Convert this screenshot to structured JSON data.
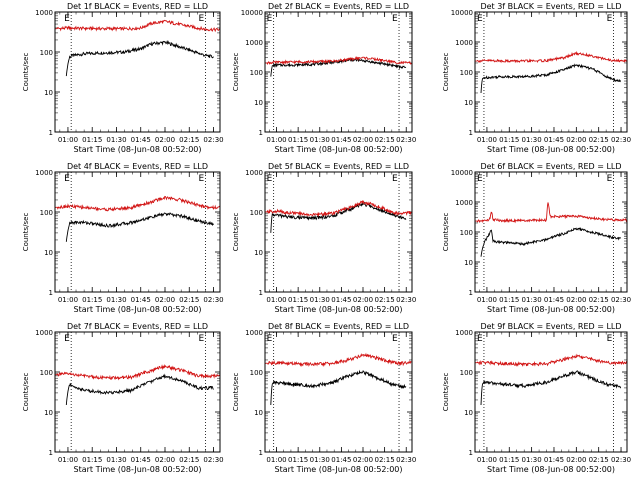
{
  "chart_data": [
    {
      "type": "line",
      "title": "Det 1f BLACK = Events, RED = LLD",
      "xlabel": "Start Time (08-Jun-08 00:52:00)",
      "ylabel": "Counts/sec",
      "yscale": "log",
      "ylim": [
        1,
        1000
      ],
      "yticks": [
        "1",
        "10",
        "100",
        "1000"
      ],
      "xticks": [
        "01:00",
        "01:15",
        "01:30",
        "01:45",
        "02:00",
        "02:15",
        "02:30"
      ],
      "xlim_minutes": [
        52,
        154
      ],
      "markers": [
        {
          "x": 62,
          "label": "E"
        },
        {
          "x": 145,
          "label": "E"
        }
      ],
      "series": [
        {
          "name": "BLACK = Events",
          "color": "#000000",
          "x": [
            59,
            61,
            62,
            70,
            80,
            95,
            105,
            112,
            120,
            130,
            140,
            145,
            150
          ],
          "y": [
            25,
            75,
            80,
            90,
            95,
            100,
            120,
            160,
            175,
            130,
            95,
            82,
            75
          ]
        },
        {
          "name": "RED = LLD",
          "color": "#d21414",
          "x": [
            52,
            60,
            70,
            80,
            95,
            105,
            112,
            120,
            130,
            140,
            145,
            154
          ],
          "y": [
            380,
            400,
            390,
            385,
            380,
            400,
            520,
            580,
            480,
            400,
            370,
            360
          ]
        }
      ]
    },
    {
      "type": "line",
      "title": "Det 2f BLACK = Events, RED = LLD",
      "xlabel": "Start Time (08-Jun-08 00:52:00)",
      "ylabel": "Counts/sec",
      "yscale": "log",
      "ylim": [
        1,
        10000
      ],
      "yticks": [
        "1",
        "10",
        "100",
        "1000",
        "10000"
      ],
      "xticks": [
        "01:00",
        "01:15",
        "01:30",
        "01:45",
        "02:00",
        "02:15",
        "02:30"
      ],
      "xlim_minutes": [
        52,
        154
      ],
      "markers": [
        {
          "x": 58,
          "label": "E"
        },
        {
          "x": 145,
          "label": "E"
        }
      ],
      "series": [
        {
          "name": "BLACK = Events",
          "color": "#000000",
          "x": [
            56,
            57,
            58,
            70,
            85,
            100,
            112,
            120,
            130,
            140,
            145,
            150
          ],
          "y": [
            70,
            160,
            170,
            170,
            180,
            210,
            250,
            240,
            200,
            170,
            150,
            140
          ]
        },
        {
          "name": "RED = LLD",
          "color": "#d21414",
          "x": [
            52,
            60,
            70,
            85,
            100,
            112,
            120,
            130,
            140,
            145,
            154
          ],
          "y": [
            200,
            210,
            215,
            220,
            230,
            270,
            300,
            260,
            220,
            205,
            200
          ]
        }
      ]
    },
    {
      "type": "line",
      "title": "Det 3f BLACK = Events, RED = LLD",
      "xlabel": "Start Time (08-Jun-08 00:52:00)",
      "ylabel": "Counts/sec",
      "yscale": "log",
      "ylim": [
        1,
        10000
      ],
      "yticks": [
        "1",
        "10",
        "100",
        "1000",
        "10000"
      ],
      "xticks": [
        "01:00",
        "01:15",
        "01:30",
        "01:45",
        "02:00",
        "02:15",
        "02:30"
      ],
      "xlim_minutes": [
        52,
        154
      ],
      "markers": [
        {
          "x": 58,
          "label": "E"
        },
        {
          "x": 145,
          "label": "E"
        }
      ],
      "series": [
        {
          "name": "BLACK = Events",
          "color": "#000000",
          "x": [
            56,
            57,
            58,
            70,
            85,
            100,
            112,
            120,
            130,
            140,
            145,
            150
          ],
          "y": [
            20,
            60,
            65,
            70,
            70,
            80,
            120,
            170,
            130,
            70,
            55,
            50
          ]
        },
        {
          "name": "RED = LLD",
          "color": "#d21414",
          "x": [
            52,
            60,
            70,
            85,
            100,
            112,
            120,
            130,
            140,
            145,
            154
          ],
          "y": [
            230,
            240,
            235,
            230,
            240,
            300,
            420,
            350,
            260,
            240,
            230
          ]
        }
      ]
    },
    {
      "type": "line",
      "title": "Det 4f BLACK = Events, RED = LLD",
      "xlabel": "Start Time (08-Jun-08 00:52:00)",
      "ylabel": "Counts/sec",
      "yscale": "log",
      "ylim": [
        1,
        1000
      ],
      "yticks": [
        "1",
        "10",
        "100",
        "1000"
      ],
      "xticks": [
        "01:00",
        "01:15",
        "01:30",
        "01:45",
        "02:00",
        "02:15",
        "02:30"
      ],
      "xlim_minutes": [
        52,
        154
      ],
      "markers": [
        {
          "x": 62,
          "label": "E"
        },
        {
          "x": 145,
          "label": "E"
        }
      ],
      "series": [
        {
          "name": "BLACK = Events",
          "color": "#000000",
          "x": [
            59,
            61,
            62,
            70,
            85,
            100,
            112,
            120,
            130,
            140,
            145,
            150
          ],
          "y": [
            18,
            50,
            55,
            55,
            45,
            55,
            75,
            90,
            80,
            60,
            55,
            50
          ]
        },
        {
          "name": "RED = LLD",
          "color": "#d21414",
          "x": [
            52,
            60,
            70,
            85,
            100,
            112,
            120,
            130,
            140,
            145,
            154
          ],
          "y": [
            130,
            140,
            130,
            115,
            130,
            180,
            230,
            200,
            150,
            135,
            130
          ]
        }
      ]
    },
    {
      "type": "line",
      "title": "Det 5f BLACK = Events, RED = LLD",
      "xlabel": "Start Time (08-Jun-08 00:52:00)",
      "ylabel": "Counts/sec",
      "yscale": "log",
      "ylim": [
        1,
        1000
      ],
      "yticks": [
        "1",
        "10",
        "100",
        "1000"
      ],
      "xticks": [
        "01:00",
        "01:15",
        "01:30",
        "01:45",
        "02:00",
        "02:15",
        "02:30"
      ],
      "xlim_minutes": [
        52,
        154
      ],
      "markers": [
        {
          "x": 58,
          "label": "E"
        },
        {
          "x": 145,
          "label": "E"
        }
      ],
      "series": [
        {
          "name": "BLACK = Events",
          "color": "#000000",
          "x": [
            56,
            57,
            58,
            70,
            85,
            100,
            112,
            120,
            130,
            140,
            145,
            150
          ],
          "y": [
            30,
            90,
            85,
            75,
            70,
            80,
            120,
            160,
            120,
            90,
            75,
            70
          ]
        },
        {
          "name": "RED = LLD",
          "color": "#d21414",
          "x": [
            52,
            60,
            70,
            85,
            100,
            112,
            120,
            130,
            140,
            145,
            154
          ],
          "y": [
            100,
            105,
            95,
            85,
            95,
            130,
            180,
            140,
            100,
            90,
            100
          ]
        }
      ]
    },
    {
      "type": "line",
      "title": "Det 6f BLACK = Events, RED = LLD",
      "xlabel": "Start Time (08-Jun-08 00:52:00)",
      "ylabel": "Counts/sec",
      "yscale": "log",
      "ylim": [
        1,
        10000
      ],
      "yticks": [
        "1",
        "10",
        "100",
        "1000",
        "10000"
      ],
      "xticks": [
        "01:00",
        "01:15",
        "01:30",
        "01:45",
        "02:00",
        "02:15",
        "02:30"
      ],
      "xlim_minutes": [
        52,
        154
      ],
      "markers": [
        {
          "x": 58,
          "label": "E"
        },
        {
          "x": 145,
          "label": "E"
        }
      ],
      "series": [
        {
          "name": "BLACK = Events",
          "color": "#000000",
          "x": [
            56,
            62,
            63,
            64,
            70,
            85,
            100,
            101,
            105,
            112,
            120,
            130,
            140,
            145,
            150
          ],
          "y": [
            15,
            90,
            120,
            50,
            45,
            40,
            55,
            60,
            70,
            90,
            130,
            100,
            75,
            65,
            60
          ]
        },
        {
          "name": "RED = LLD",
          "color": "#d21414",
          "x": [
            52,
            60,
            62,
            63,
            64,
            70,
            85,
            100,
            101,
            102,
            103,
            112,
            120,
            130,
            140,
            145,
            154
          ],
          "y": [
            230,
            240,
            280,
            500,
            260,
            240,
            240,
            250,
            1000,
            400,
            330,
            330,
            340,
            290,
            260,
            255,
            250
          ]
        }
      ]
    },
    {
      "type": "line",
      "title": "Det 7f BLACK = Events, RED = LLD",
      "xlabel": "Start Time (08-Jun-08 00:52:00)",
      "ylabel": "Counts/sec",
      "yscale": "log",
      "ylim": [
        1,
        1000
      ],
      "yticks": [
        "1",
        "10",
        "100",
        "1000"
      ],
      "xticks": [
        "01:00",
        "01:15",
        "01:30",
        "01:45",
        "02:00",
        "02:15",
        "02:30"
      ],
      "xlim_minutes": [
        52,
        154
      ],
      "markers": [
        {
          "x": 62,
          "label": "E"
        },
        {
          "x": 145,
          "label": "E"
        }
      ],
      "series": [
        {
          "name": "BLACK = Events",
          "color": "#000000",
          "x": [
            59,
            61,
            62,
            70,
            85,
            100,
            112,
            120,
            130,
            140,
            145,
            150
          ],
          "y": [
            15,
            50,
            45,
            35,
            30,
            35,
            60,
            80,
            60,
            40,
            40,
            40
          ]
        },
        {
          "name": "RED = LLD",
          "color": "#d21414",
          "x": [
            52,
            60,
            70,
            85,
            100,
            112,
            120,
            130,
            140,
            145,
            154
          ],
          "y": [
            85,
            90,
            80,
            70,
            75,
            110,
            140,
            110,
            80,
            80,
            80
          ]
        }
      ]
    },
    {
      "type": "line",
      "title": "Det 8f BLACK = Events, RED = LLD",
      "xlabel": "Start Time (08-Jun-08 00:52:00)",
      "ylabel": "Counts/sec",
      "yscale": "log",
      "ylim": [
        1,
        1000
      ],
      "yticks": [
        "1",
        "10",
        "100",
        "1000"
      ],
      "xticks": [
        "01:00",
        "01:15",
        "01:30",
        "01:45",
        "02:00",
        "02:15",
        "02:30"
      ],
      "xlim_minutes": [
        52,
        154
      ],
      "markers": [
        {
          "x": 58,
          "label": "E"
        },
        {
          "x": 145,
          "label": "E"
        }
      ],
      "series": [
        {
          "name": "BLACK = Events",
          "color": "#000000",
          "x": [
            56,
            57,
            58,
            70,
            85,
            100,
            112,
            120,
            130,
            140,
            145,
            150
          ],
          "y": [
            15,
            50,
            55,
            50,
            45,
            55,
            85,
            100,
            70,
            50,
            45,
            42
          ]
        },
        {
          "name": "RED = LLD",
          "color": "#d21414",
          "x": [
            52,
            60,
            70,
            85,
            100,
            112,
            120,
            130,
            140,
            145,
            154
          ],
          "y": [
            165,
            170,
            165,
            155,
            165,
            210,
            270,
            220,
            175,
            165,
            170
          ]
        }
      ]
    },
    {
      "type": "line",
      "title": "Det 9f BLACK = Events, RED = LLD",
      "xlabel": "Start Time (08-Jun-08 00:52:00)",
      "ylabel": "Counts/sec",
      "yscale": "log",
      "ylim": [
        1,
        1000
      ],
      "yticks": [
        "1",
        "10",
        "100",
        "1000"
      ],
      "xticks": [
        "01:00",
        "01:15",
        "01:30",
        "01:45",
        "02:00",
        "02:15",
        "02:30"
      ],
      "xlim_minutes": [
        52,
        154
      ],
      "markers": [
        {
          "x": 58,
          "label": "E"
        },
        {
          "x": 145,
          "label": "E"
        }
      ],
      "series": [
        {
          "name": "BLACK = Events",
          "color": "#000000",
          "x": [
            56,
            57,
            58,
            70,
            85,
            100,
            112,
            120,
            130,
            140,
            145,
            150
          ],
          "y": [
            15,
            50,
            55,
            50,
            45,
            55,
            80,
            100,
            70,
            50,
            45,
            42
          ]
        },
        {
          "name": "RED = LLD",
          "color": "#d21414",
          "x": [
            52,
            60,
            70,
            85,
            100,
            112,
            120,
            130,
            140,
            145,
            154
          ],
          "y": [
            170,
            175,
            165,
            155,
            160,
            210,
            250,
            210,
            170,
            165,
            170
          ]
        }
      ]
    }
  ]
}
